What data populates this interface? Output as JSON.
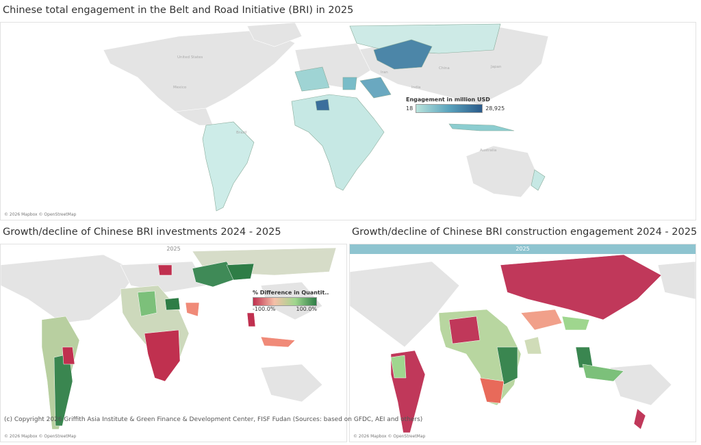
{
  "titles": {
    "top": "Chinese total engagement in the Belt and Road Initiative (BRI) in 2025",
    "bottom_left": "Growth/decline of Chinese BRI investments 2024 - 2025",
    "bottom_right": "Growth/decline of Chinese BRI construction engagement 2024 - 2025"
  },
  "top_map": {
    "legend": {
      "title": "Engagement in million USD",
      "min": "18",
      "max": "28,925",
      "color_low": "#b9e3dc",
      "color_high": "#2a5a8a"
    },
    "labels": [
      "United States",
      "Mexico",
      "Brazil",
      "Iran",
      "India",
      "China",
      "Japan",
      "Australia"
    ],
    "attribution": "© 2026 Mapbox © OpenStreetMap"
  },
  "bottom_left_map": {
    "header": "2025",
    "legend": {
      "title": "% Difference in Quantit..",
      "min": "-100.0%",
      "max": "100.0%",
      "color_low": "#c0304f",
      "color_mid": "#f5c0a8",
      "color_high": "#2e7d46"
    },
    "attribution": "© 2026 Mapbox © OpenStreetMap"
  },
  "bottom_right_map": {
    "header": "2025",
    "header_color": "#8ec4d0",
    "attribution": "© 2026 Mapbox © OpenStreetMap"
  },
  "copyright": "(c) Copyright 2026 Griffith Asia Institute & Green Finance & Development Center, FISF Fudan (Sources: based on GFDC, AEI and others)"
}
